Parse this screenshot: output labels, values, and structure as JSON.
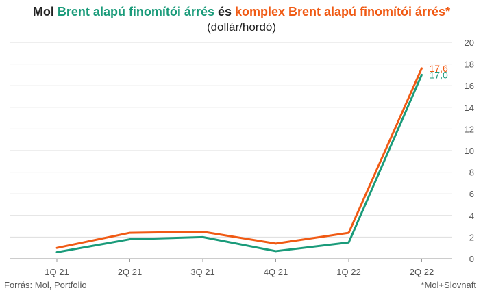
{
  "title": {
    "part1": "Mol ",
    "part2": "Brent alapú finomítói árrés",
    "part3": " és ",
    "part4": "komplex Brent alapú finomítói árrés*"
  },
  "subtitle": "(dollár/hordó)",
  "source": "Forrás: Mol, Portfolio",
  "footnote": "*Mol+Slovnaft",
  "colors": {
    "green": "#1a9b7a",
    "orange": "#f05a14",
    "text": "#222222",
    "grid": "#dddddd"
  },
  "chart_data": {
    "type": "line",
    "categories": [
      "1Q 21",
      "2Q 21",
      "3Q 21",
      "4Q 21",
      "1Q 22",
      "2Q 22"
    ],
    "ylim": [
      0,
      20
    ],
    "yticks": [
      0,
      2,
      4,
      6,
      8,
      10,
      12,
      14,
      16,
      18,
      20
    ],
    "grid": true,
    "series": [
      {
        "name": "Brent alapú finomítói árrés",
        "color": "#1a9b7a",
        "values": [
          0.6,
          1.8,
          2.0,
          0.7,
          1.5,
          17.0
        ],
        "last_label": "17,0"
      },
      {
        "name": "komplex Brent alapú finomítói árrés*",
        "color": "#f05a14",
        "values": [
          1.0,
          2.4,
          2.5,
          1.4,
          2.4,
          17.6
        ],
        "last_label": "17,6"
      }
    ]
  }
}
